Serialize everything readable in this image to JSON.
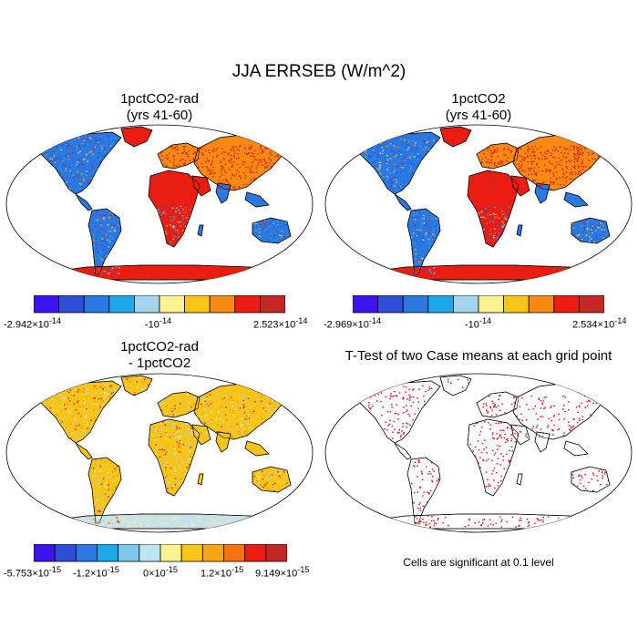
{
  "title": "JJA ERRSEB (W/m^2)",
  "panels": {
    "top_left": {
      "title_line1": "1pctCO2-rad",
      "title_line2": "(yrs 41-60)"
    },
    "top_right": {
      "title_line1": "1pctCO2",
      "title_line2": "(yrs 41-60)"
    },
    "bottom_left": {
      "title_line1": "1pctCO2-rad",
      "title_line2": "- 1pctCO2"
    },
    "bottom_right": {
      "title": "T-Test of two Case means at each grid point",
      "note": "Cells are significant at 0.1 level"
    }
  },
  "colorbars": {
    "top_left": {
      "colors": [
        "#3b14f0",
        "#2e4ed8",
        "#2a78e0",
        "#1ea8ec",
        "#a3d6ee",
        "#fdf28f",
        "#f8c418",
        "#f68a12",
        "#ea1d10",
        "#c42826"
      ],
      "labels": [
        "-2.942×10-14",
        "-10-14",
        "2.523×10-14"
      ],
      "min_base": "-2.942×10",
      "min_exp": "-14",
      "mid_base": "-10",
      "mid_exp": "-14",
      "max_base": "2.523×10",
      "max_exp": "-14"
    },
    "top_right": {
      "colors": [
        "#3b14f0",
        "#2e4ed8",
        "#2a78e0",
        "#1ea8ec",
        "#a3d6ee",
        "#fdf28f",
        "#f8c418",
        "#f68a12",
        "#ea1d10",
        "#c42826"
      ],
      "min_base": "-2.969×10",
      "min_exp": "-14",
      "mid_base": "-10",
      "mid_exp": "-14",
      "max_base": "2.534×10",
      "max_exp": "-14"
    },
    "bottom_left": {
      "colors": [
        "#3b14f0",
        "#2e4ed8",
        "#2a78e0",
        "#1ea8ec",
        "#7ec6ee",
        "#bde4f0",
        "#fdf28f",
        "#f8c418",
        "#f8a616",
        "#f6720e",
        "#ea1d10",
        "#c42826"
      ],
      "l1_base": "-5.753×10",
      "l1_exp": "-15",
      "l2_base": "-1.2×10",
      "l2_exp": "-15",
      "l3_base": "0×10",
      "l3_exp": "-15",
      "l4_base": "1.2×10",
      "l4_exp": "-15",
      "l5_base": "9.149×10",
      "l5_exp": "-15"
    }
  },
  "map_fill": {
    "top": {
      "land_primary": "#2a78e0",
      "land_secondary": "#1ea8ec",
      "hot": "#ea1d10",
      "warm": "#f68a12",
      "antarctica": "#e2261a"
    },
    "diff": {
      "land_primary": "#c8e0e8",
      "land_secondary": "#f8c418",
      "hot": "#ea1d10",
      "cool": "#2a78e0"
    },
    "ttest": {
      "dots": "#e81010"
    }
  }
}
